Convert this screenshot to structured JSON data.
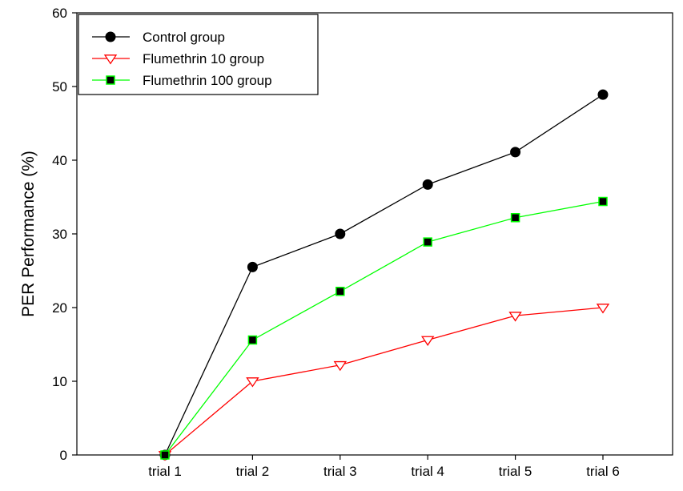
{
  "chart_data": {
    "type": "line",
    "categories": [
      "trial 1",
      "trial 2",
      "trial 3",
      "trial 4",
      "trial 5",
      "trial 6"
    ],
    "xlabel": "",
    "ylabel": "PER Performance (%)",
    "ylim": [
      0,
      60
    ],
    "yticks": [
      0,
      10,
      20,
      30,
      40,
      50,
      60
    ],
    "grid": false,
    "legend_position": "top-left",
    "series": [
      {
        "name": "Control group",
        "values": [
          0,
          25.5,
          30,
          36.7,
          41.1,
          48.9
        ],
        "color": "#000000",
        "marker": "filled-circle"
      },
      {
        "name": "Flumethrin 10 group",
        "values": [
          0,
          10,
          12.2,
          15.6,
          18.9,
          20
        ],
        "color": "#ff0000",
        "marker": "open-down-triangle"
      },
      {
        "name": "Flumethrin 100 group",
        "values": [
          0,
          15.6,
          22.2,
          28.9,
          32.2,
          34.4
        ],
        "color": "#00ff00",
        "marker": "filled-square"
      }
    ]
  }
}
